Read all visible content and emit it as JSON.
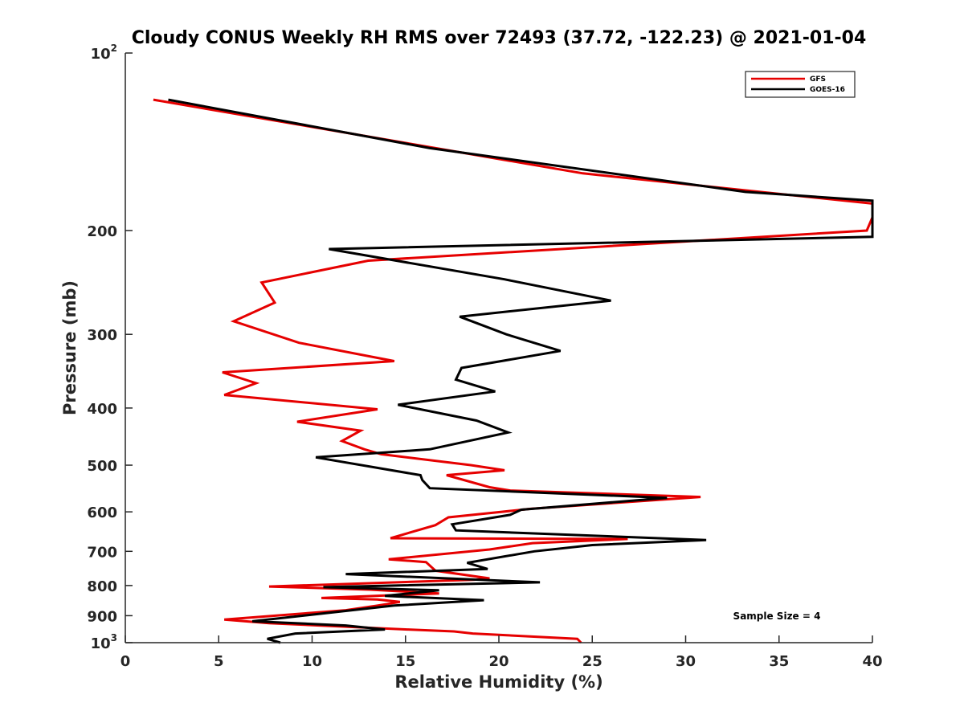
{
  "chart_data": {
    "type": "line",
    "title": "Cloudy CONUS Weekly RH RMS over 72493 (37.72, -122.23) @ 2021-01-04",
    "xlabel": "Relative Humidity (%)",
    "ylabel": "Pressure (mb)",
    "xlim": [
      0,
      40
    ],
    "ylim": [
      100,
      1000
    ],
    "yscale": "log",
    "y_reversed": true,
    "grid": false,
    "legend_position": "top-right",
    "x_ticks": [
      "0",
      "5",
      "10",
      "15",
      "20",
      "25",
      "30",
      "35",
      "40"
    ],
    "y_ticks": [
      {
        "value": 100,
        "label": "10",
        "sup": "2"
      },
      {
        "value": 200,
        "label": "200"
      },
      {
        "value": 300,
        "label": "300"
      },
      {
        "value": 400,
        "label": "400"
      },
      {
        "value": 500,
        "label": "500"
      },
      {
        "value": 600,
        "label": "600"
      },
      {
        "value": 700,
        "label": "700"
      },
      {
        "value": 800,
        "label": "800"
      },
      {
        "value": 900,
        "label": "900"
      },
      {
        "value": 1000,
        "label": "10",
        "sup": "3"
      }
    ],
    "annotation": "Sample Size = 4",
    "series": [
      {
        "name": "GFS",
        "color": "#e60000",
        "points": [
          [
            1.5,
            120
          ],
          [
            24.5,
            160
          ],
          [
            40,
            180
          ],
          [
            40,
            190
          ],
          [
            39.7,
            200
          ],
          [
            13,
            225
          ],
          [
            7.3,
            245
          ],
          [
            8,
            265
          ],
          [
            5.8,
            285
          ],
          [
            9.3,
            310
          ],
          [
            14.4,
            333
          ],
          [
            5.2,
            348
          ],
          [
            7,
            363
          ],
          [
            5.3,
            380
          ],
          [
            13.5,
            402
          ],
          [
            9.2,
            422
          ],
          [
            12.6,
            437
          ],
          [
            11.6,
            455
          ],
          [
            12.8,
            470
          ],
          [
            13.7,
            479
          ],
          [
            18.5,
            500
          ],
          [
            20.3,
            510
          ],
          [
            17.2,
            520
          ],
          [
            19.5,
            545
          ],
          [
            20.6,
            552
          ],
          [
            30.8,
            566
          ],
          [
            21.7,
            593
          ],
          [
            17.3,
            613
          ],
          [
            16.6,
            632
          ],
          [
            14.2,
            665
          ],
          [
            26.9,
            667
          ],
          [
            21.8,
            678
          ],
          [
            19.5,
            695
          ],
          [
            14.1,
            722
          ],
          [
            16.1,
            730
          ],
          [
            16.6,
            755
          ],
          [
            19.5,
            778
          ],
          [
            18.7,
            782
          ],
          [
            7.7,
            803
          ],
          [
            13.1,
            813
          ],
          [
            16.8,
            825
          ],
          [
            10.5,
            840
          ],
          [
            13.5,
            845
          ],
          [
            14.7,
            853
          ],
          [
            13.5,
            865
          ],
          [
            11.8,
            881
          ],
          [
            5.3,
            914
          ],
          [
            7.7,
            927
          ],
          [
            15.1,
            950
          ],
          [
            17.6,
            957
          ],
          [
            18.6,
            965
          ],
          [
            24.2,
            985
          ],
          [
            24.4,
            1000
          ]
        ]
      },
      {
        "name": "GOES-16",
        "color": "#000000",
        "points": [
          [
            2.3,
            120
          ],
          [
            16.3,
            145
          ],
          [
            33.2,
            172
          ],
          [
            40,
            178
          ],
          [
            40,
            205
          ],
          [
            10.9,
            215
          ],
          [
            20.3,
            242
          ],
          [
            26,
            263
          ],
          [
            17.9,
            280
          ],
          [
            20.4,
            300
          ],
          [
            23.3,
            320
          ],
          [
            18,
            342
          ],
          [
            17.7,
            358
          ],
          [
            19.8,
            375
          ],
          [
            14.6,
            395
          ],
          [
            18.8,
            420
          ],
          [
            20.5,
            440
          ],
          [
            16.3,
            470
          ],
          [
            10.2,
            485
          ],
          [
            15.8,
            520
          ],
          [
            15.9,
            530
          ],
          [
            16.3,
            547
          ],
          [
            29,
            568
          ],
          [
            21.2,
            595
          ],
          [
            20.6,
            607
          ],
          [
            17.5,
            630
          ],
          [
            17.7,
            645
          ],
          [
            31.1,
            670
          ],
          [
            25,
            683
          ],
          [
            21.9,
            700
          ],
          [
            18.3,
            732
          ],
          [
            19.4,
            750
          ],
          [
            11.8,
            765
          ],
          [
            22.2,
            790
          ],
          [
            10.6,
            805
          ],
          [
            16.8,
            815
          ],
          [
            13.9,
            833
          ],
          [
            19.2,
            847
          ],
          [
            14.4,
            865
          ],
          [
            6.8,
            920
          ],
          [
            11.8,
            935
          ],
          [
            13.9,
            950
          ],
          [
            9.1,
            965
          ],
          [
            7.6,
            985
          ],
          [
            8.3,
            1000
          ]
        ]
      }
    ]
  }
}
